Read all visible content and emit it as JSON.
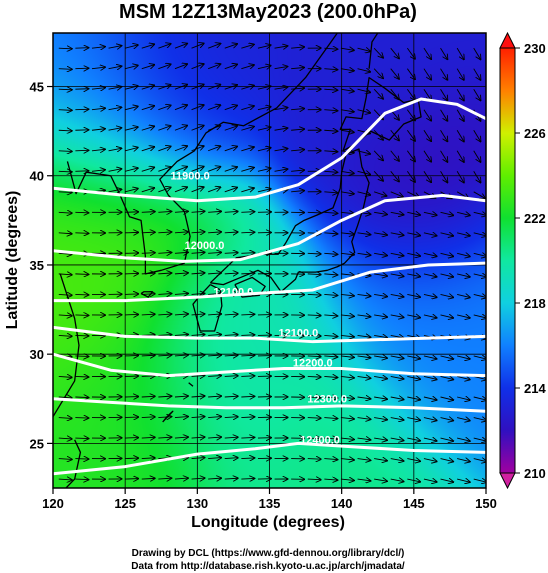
{
  "chart_data": {
    "type": "heatmap",
    "title": "MSM 12Z13May2023 (200.0hPa)",
    "xlabel": "Longitude (degrees)",
    "ylabel": "Latitude  (degrees)",
    "xlim": [
      120,
      150
    ],
    "ylim": [
      22.5,
      48
    ],
    "x_ticks": [
      "120",
      "125",
      "130",
      "135",
      "140",
      "145",
      "150"
    ],
    "y_ticks": [
      "25",
      "30",
      "35",
      "40",
      "45"
    ],
    "colorbar": {
      "range": [
        210,
        230
      ],
      "ticks": [
        "210",
        "214",
        "218",
        "222",
        "226",
        "230"
      ]
    },
    "contours": [
      {
        "label": "11900.0",
        "label_lon": 129.5,
        "label_lat": 39.8,
        "points": [
          [
            120,
            39.3
          ],
          [
            125,
            38.9
          ],
          [
            130,
            38.6
          ],
          [
            134,
            38.8
          ],
          [
            137,
            39.5
          ],
          [
            140,
            41
          ],
          [
            143,
            43.5
          ],
          [
            145.5,
            44.3
          ],
          [
            148,
            44.0
          ],
          [
            150,
            43.2
          ]
        ]
      },
      {
        "label": "12000.0",
        "label_lon": 130.5,
        "label_lat": 35.9,
        "points": [
          [
            120,
            35.8
          ],
          [
            125,
            35.4
          ],
          [
            129,
            35.2
          ],
          [
            133,
            35.3
          ],
          [
            137,
            36.2
          ],
          [
            140,
            37.5
          ],
          [
            143,
            38.6
          ],
          [
            147,
            38.9
          ],
          [
            150,
            38.6
          ]
        ]
      },
      {
        "label": "12100.0",
        "label_lon": 132.5,
        "label_lat": 33.3,
        "points": [
          [
            120,
            33.0
          ],
          [
            125,
            33.0
          ],
          [
            130,
            33.2
          ],
          [
            134,
            33.4
          ],
          [
            138,
            33.6
          ],
          [
            142,
            34.6
          ],
          [
            146,
            35.0
          ],
          [
            150,
            35.1
          ]
        ]
      },
      {
        "label": "12100.0",
        "label_lon": 137,
        "label_lat": 31.0,
        "points": [
          [
            120,
            31.5
          ],
          [
            125,
            31.0
          ],
          [
            130,
            30.9
          ],
          [
            134,
            30.9
          ],
          [
            138,
            30.7
          ],
          [
            142,
            30.8
          ],
          [
            146,
            30.9
          ],
          [
            150,
            31.0
          ]
        ]
      },
      {
        "label": "12200.0",
        "label_lon": 138,
        "label_lat": 29.3,
        "points": [
          [
            120,
            30.0
          ],
          [
            124,
            29.1
          ],
          [
            128,
            28.8
          ],
          [
            132,
            29.0
          ],
          [
            136,
            29.2
          ],
          [
            140,
            29.2
          ],
          [
            145,
            28.9
          ],
          [
            150,
            28.8
          ]
        ]
      },
      {
        "label": "12300.0",
        "label_lon": 139,
        "label_lat": 27.3,
        "points": [
          [
            120,
            27.5
          ],
          [
            124,
            27.3
          ],
          [
            128,
            27.1
          ],
          [
            132,
            27.0
          ],
          [
            136,
            27.0
          ],
          [
            140,
            27.1
          ],
          [
            145,
            27.0
          ],
          [
            150,
            26.8
          ]
        ]
      },
      {
        "label": "12400.0",
        "label_lon": 138.5,
        "label_lat": 25.0,
        "points": [
          [
            120,
            23.3
          ],
          [
            125,
            23.7
          ],
          [
            130,
            24.4
          ],
          [
            134,
            24.7
          ],
          [
            137,
            25.0
          ],
          [
            141,
            24.8
          ],
          [
            145,
            24.6
          ],
          [
            150,
            24.5
          ]
        ]
      }
    ],
    "color_centers": [
      {
        "lon": 128,
        "lat": 47,
        "value": 213,
        "sigma": 3.5
      },
      {
        "lon": 123,
        "lat": 46,
        "value": 216,
        "sigma": 4
      },
      {
        "lon": 145.5,
        "lat": 39,
        "value": 211,
        "sigma": 3
      },
      {
        "lon": 143,
        "lat": 44,
        "value": 213,
        "sigma": 3.5
      },
      {
        "lon": 146,
        "lat": 33,
        "value": 216,
        "sigma": 4
      },
      {
        "lon": 133,
        "lat": 29,
        "value": 219.5,
        "sigma": 4
      },
      {
        "lon": 122,
        "lat": 36,
        "value": 223.5,
        "sigma": 4.5
      },
      {
        "lon": 125,
        "lat": 25,
        "value": 222.5,
        "sigma": 4
      },
      {
        "lon": 138,
        "lat": 23,
        "value": 220.5,
        "sigma": 4
      }
    ],
    "colorbar_colors": [
      [
        210,
        "#a000a0"
      ],
      [
        212,
        "#3010c0"
      ],
      [
        214,
        "#1030e8"
      ],
      [
        216,
        "#1080ff"
      ],
      [
        218,
        "#10d0e0"
      ],
      [
        220,
        "#10e8a0"
      ],
      [
        222,
        "#10e030"
      ],
      [
        224,
        "#60ee00"
      ],
      [
        226,
        "#d0f000"
      ],
      [
        228,
        "#ff8000"
      ],
      [
        230,
        "#ff2000"
      ]
    ]
  },
  "credits": {
    "line1": "Drawing by DCL (https://www.gfd-dennou.org/library/dcl/)",
    "line2": "Data from http://database.rish.kyoto-u.ac.jp/arch/jmadata/"
  }
}
